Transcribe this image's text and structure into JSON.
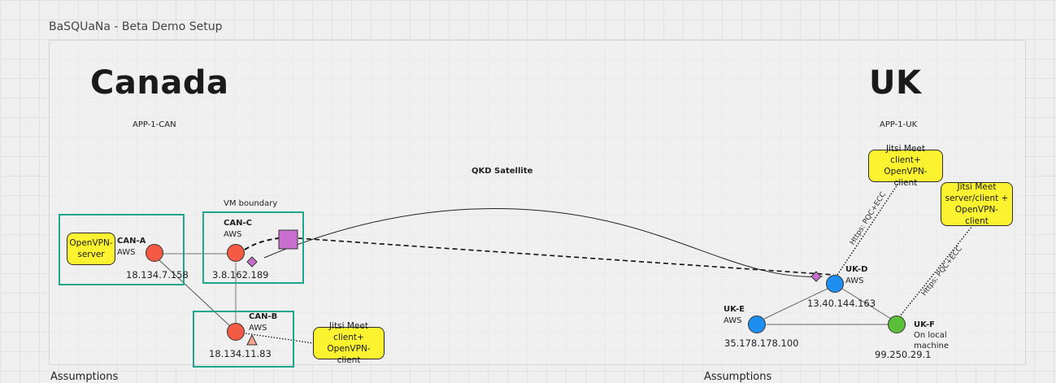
{
  "frame_title": "BaSQUaNa - Beta Demo Setup",
  "regions": {
    "canada": {
      "title": "Canada",
      "app": "APP-1-CAN"
    },
    "uk": {
      "title": "UK",
      "app": "APP-1-UK"
    }
  },
  "satellite_label": "QKD Satellite",
  "vm_boundary_label": "VM boundary",
  "nodes": {
    "can_a": {
      "name": "CAN-A",
      "host": "AWS",
      "ip": "18.134.7.158"
    },
    "can_b": {
      "name": "CAN-B",
      "host": "AWS",
      "ip": "18.134.11.83"
    },
    "can_c": {
      "name": "CAN-C",
      "host": "AWS",
      "ip": "3.8.162.189"
    },
    "uk_d": {
      "name": "UK-D",
      "host": "AWS",
      "ip": "13.40.144.163"
    },
    "uk_e": {
      "name": "UK-E",
      "host": "AWS",
      "ip": "35.178.178.100"
    },
    "uk_f": {
      "name": "UK-F",
      "host": "On local machine",
      "ip": "99.250.29.1"
    }
  },
  "notes": {
    "openvpn_server": "OpenVPN-\nserver",
    "can_b_client": "Jitsi Meet client+\nOpenVPN-client",
    "uk_d_client": "Jitsi Meet  client+\nOpenVPN-client",
    "uk_f_server": "Jitsi Meet\nserver/client +\nOpenVPN-client"
  },
  "edge_labels": {
    "uk_d_https": "Https: PQC+ECC",
    "uk_f_https": "Https: PQC+ECC"
  },
  "colors": {
    "canada_node": "#f45a44",
    "uk_node": "#1e8ff0",
    "local_node": "#5cbf3a",
    "vm_box": "#1fa58c",
    "note": "#fbf32f",
    "qkd_square": "#c86fcf"
  },
  "footer": {
    "left": "Assumptions",
    "right": "Assumptions"
  }
}
